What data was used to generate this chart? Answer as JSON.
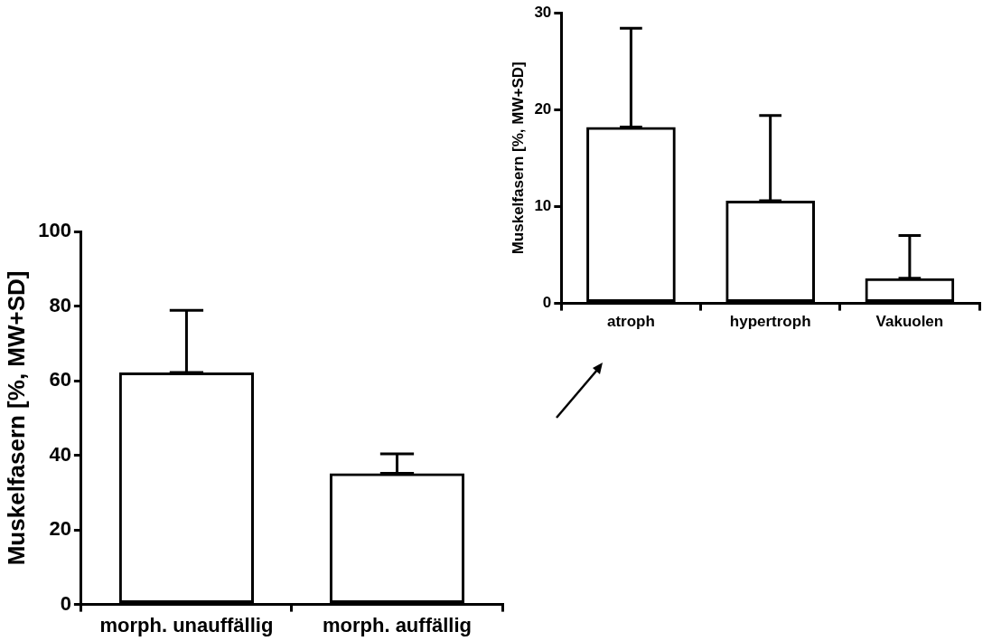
{
  "chart_data": [
    {
      "type": "bar",
      "ylabel": "Muskelfasern [%, MW+SD]",
      "categories": [
        "morph. unauffällig",
        "morph. auffällig"
      ],
      "values": [
        62.2,
        35.2
      ],
      "errors": [
        [
          62.2,
          78.9
        ],
        [
          35.2,
          40.4
        ]
      ],
      "color": "#000000",
      "ylim": [
        0,
        100
      ],
      "yticks": [
        0,
        20,
        40,
        60,
        80,
        100
      ],
      "grid": false,
      "legend": false
    },
    {
      "type": "bar",
      "ylabel": "Muskelfasern [%, MW+SD]",
      "categories": [
        "atroph",
        "hypertroph",
        "Vakuolen"
      ],
      "values": [
        18.2,
        10.6,
        2.6
      ],
      "errors": [
        [
          18.2,
          28.4
        ],
        [
          10.6,
          19.4
        ],
        [
          2.6,
          7.0
        ]
      ],
      "color": "#000000",
      "ylim": [
        0,
        30
      ],
      "yticks": [
        0,
        10,
        20,
        30
      ],
      "grid": false,
      "legend": false
    }
  ]
}
